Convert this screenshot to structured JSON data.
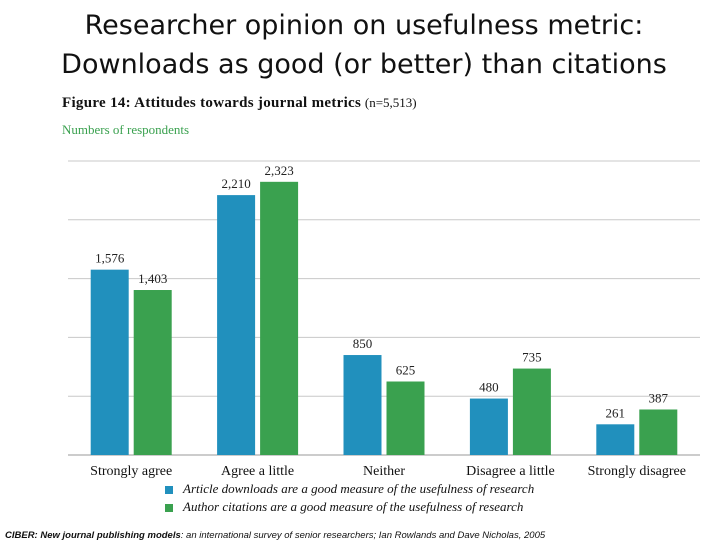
{
  "slide": {
    "title_line1": "Researcher opinion on usefulness metric:",
    "title_line2": "Downloads as good (or better) than citations"
  },
  "figure": {
    "title": "Figure 14: Attitudes towards journal metrics",
    "n_note": "(n=5,513)",
    "subtitle": "Numbers of respondents"
  },
  "colors": {
    "downloads": "#2190bd",
    "citations": "#3aa14f",
    "grid": "#c8c8c8"
  },
  "chart_data": {
    "type": "bar",
    "title": "Figure 14: Attitudes towards journal metrics (n=5,513)",
    "ylabel": "Numbers of respondents",
    "xlabel": "",
    "categories": [
      "Strongly agree",
      "Agree a little",
      "Neither",
      "Disagree a little",
      "Strongly disagree"
    ],
    "series": [
      {
        "name": "Article downloads are a good measure of the usefulness of research",
        "values": [
          1576,
          2210,
          850,
          480,
          261
        ],
        "labels": [
          "1,576",
          "2,210",
          "850",
          "480",
          "261"
        ]
      },
      {
        "name": "Author citations are a good measure of the usefulness of research",
        "values": [
          1403,
          2323,
          625,
          735,
          387
        ],
        "labels": [
          "1,403",
          "2,323",
          "625",
          "735",
          "387"
        ]
      }
    ],
    "ylim": [
      0,
      2500
    ],
    "gridlines": [
      500,
      1000,
      1500,
      2000,
      2500
    ],
    "legend_position": "bottom"
  },
  "footer": {
    "source_bold": "CIBER: New journal publishing models",
    "source_rest": ": an international survey of senior researchers; Ian Rowlands and Dave Nicholas, 2005"
  }
}
